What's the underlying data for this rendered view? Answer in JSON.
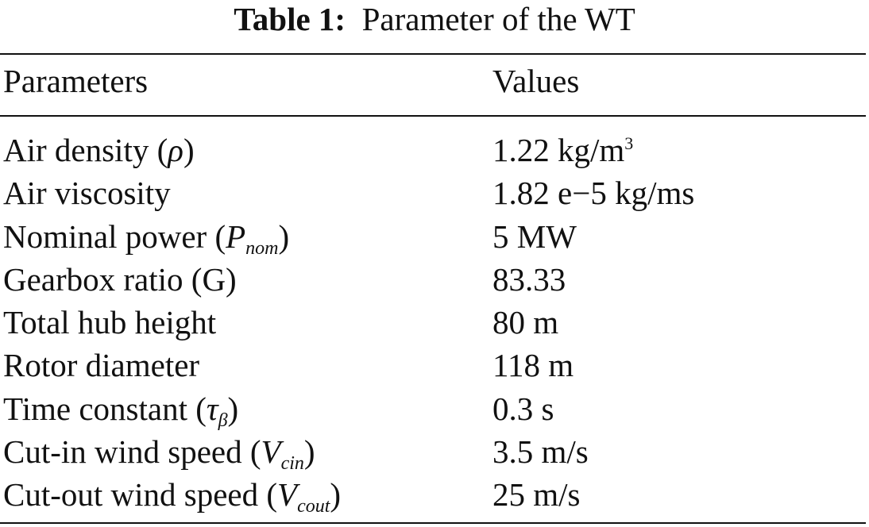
{
  "caption": {
    "label": "Table 1:",
    "text": "Parameter of the WT"
  },
  "header": {
    "param": "Parameters",
    "value": "Values"
  },
  "rows": [
    {
      "param": "Air density (",
      "symbol": "ρ",
      "sub": "",
      "close": ")",
      "value": "1.22 kg/m",
      "value_sup": "3"
    },
    {
      "param": "Air viscosity",
      "symbol": "",
      "sub": "",
      "close": "",
      "value": "1.82 e−5 kg/ms",
      "value_sup": ""
    },
    {
      "param": "Nominal power (",
      "symbol": "P",
      "sub": "nom",
      "close": ")",
      "value": "5 MW",
      "value_sup": ""
    },
    {
      "param": "Gearbox ratio (G)",
      "symbol": "",
      "sub": "",
      "close": "",
      "value": "83.33",
      "value_sup": ""
    },
    {
      "param": "Total hub height",
      "symbol": "",
      "sub": "",
      "close": "",
      "value": "80 m",
      "value_sup": ""
    },
    {
      "param": "Rotor diameter",
      "symbol": "",
      "sub": "",
      "close": "",
      "value": "118 m",
      "value_sup": ""
    },
    {
      "param": "Time constant (",
      "symbol": "τ",
      "sub": "β",
      "close": ")",
      "value": "0.3 s",
      "value_sup": ""
    },
    {
      "param": "Cut-in wind speed (",
      "symbol": "V",
      "sub": "cin",
      "close": ")",
      "value": "3.5 m/s",
      "value_sup": ""
    },
    {
      "param": "Cut-out wind speed (",
      "symbol": "V",
      "sub": "cout",
      "close": ")",
      "value": "25 m/s",
      "value_sup": ""
    }
  ]
}
